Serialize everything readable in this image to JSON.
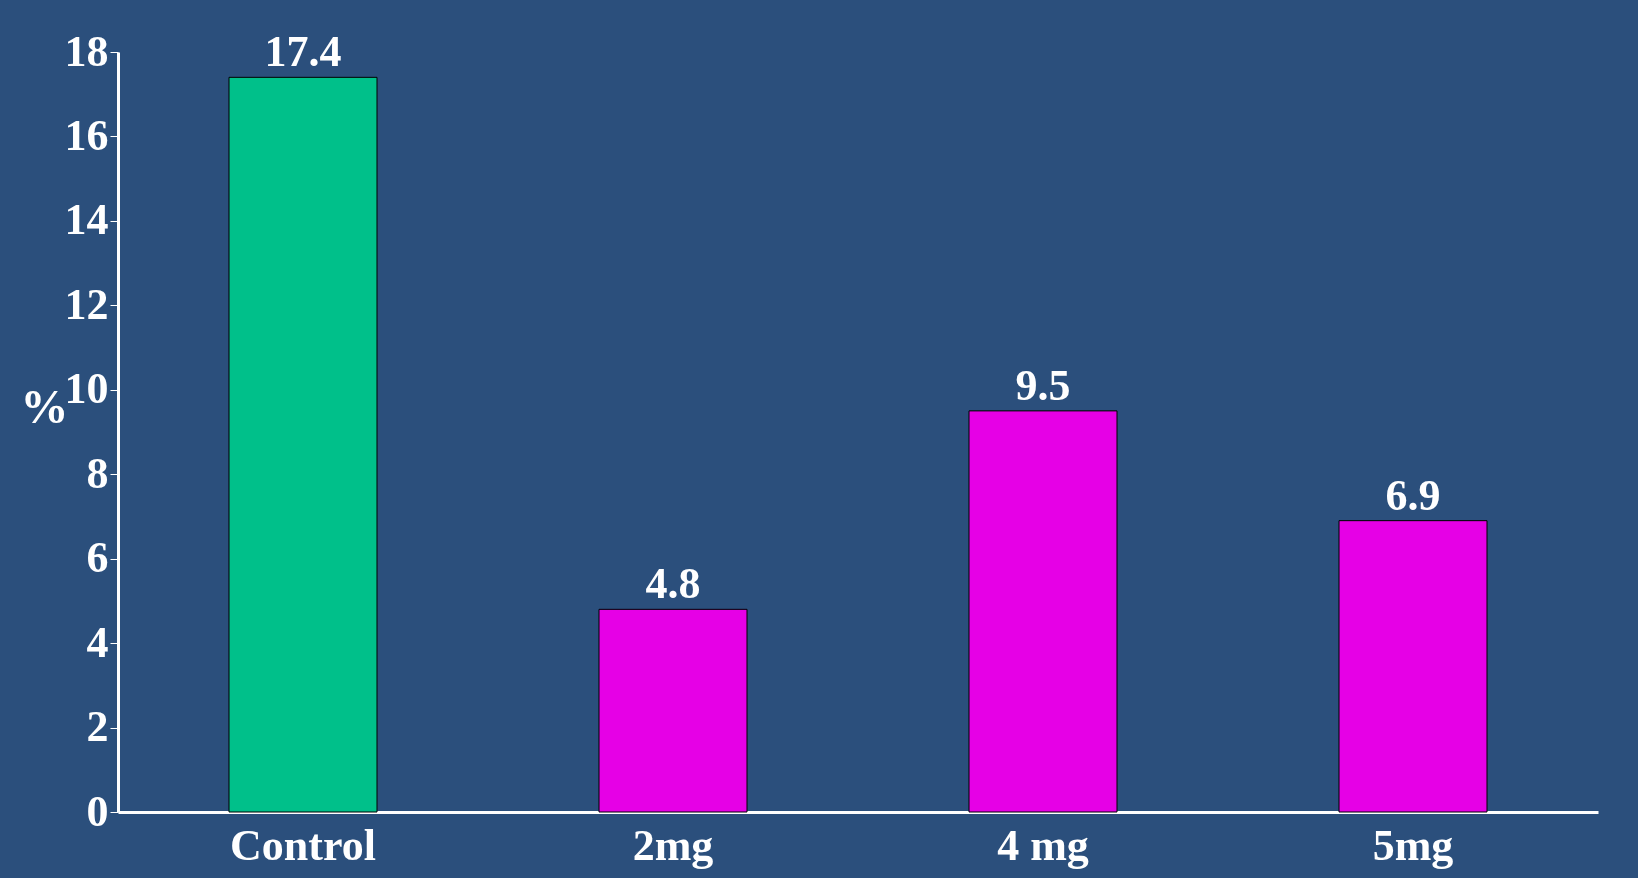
{
  "chart_data": {
    "type": "bar",
    "ylabel": "%",
    "categories": [
      "Control",
      "2mg",
      "4 mg",
      "5mg"
    ],
    "values": [
      17.4,
      4.8,
      9.5,
      6.9
    ],
    "colors": [
      "#00c08a",
      "#e600e6",
      "#e600e6",
      "#e600e6"
    ],
    "ylim": [
      0,
      18
    ],
    "yticks": [
      0,
      2,
      4,
      6,
      8,
      10,
      12,
      14,
      16,
      18
    ],
    "data_labels": true,
    "grid": false
  }
}
